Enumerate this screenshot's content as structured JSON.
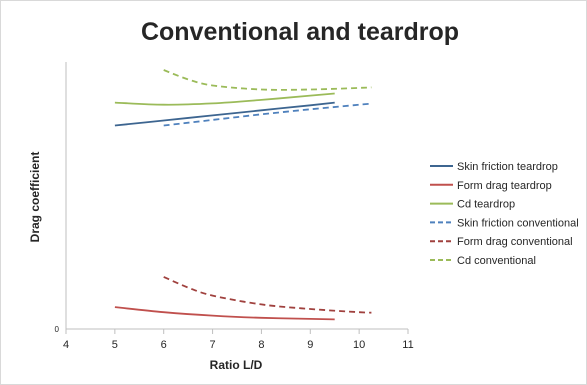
{
  "chart_data": {
    "type": "line",
    "title": "Conventional and teardrop",
    "xlabel": "Ratio L/D",
    "ylabel": "Drag coefficient",
    "xlim": [
      4,
      11
    ],
    "x_ticks": [
      "4",
      "5",
      "6",
      "7",
      "8",
      "9",
      "10",
      "11"
    ],
    "y_ticks": [
      "0"
    ],
    "grid": false,
    "legend_position": "right",
    "series": [
      {
        "name": "Skin friction teardrop",
        "color": "#3d6590",
        "dash": "solid",
        "points": [
          [
            5,
            0.762
          ],
          [
            6,
            0.781
          ],
          [
            7,
            0.8
          ],
          [
            8,
            0.819
          ],
          [
            9,
            0.838
          ],
          [
            9.5,
            0.848
          ]
        ]
      },
      {
        "name": "Form drag teardrop",
        "color": "#c0504d",
        "dash": "solid",
        "points": [
          [
            5,
            0.082
          ],
          [
            6,
            0.063
          ],
          [
            7,
            0.05
          ],
          [
            8,
            0.042
          ],
          [
            9,
            0.038
          ],
          [
            9.5,
            0.036
          ]
        ]
      },
      {
        "name": "Cd teardrop",
        "color": "#9bbb59",
        "dash": "solid",
        "points": [
          [
            5,
            0.848
          ],
          [
            6,
            0.84
          ],
          [
            7,
            0.845
          ],
          [
            8,
            0.858
          ],
          [
            9,
            0.874
          ],
          [
            9.5,
            0.882
          ]
        ]
      },
      {
        "name": "Skin friction conventional",
        "color": "#4f81bd",
        "dash": "dashed",
        "points": [
          [
            6,
            0.762
          ],
          [
            7,
            0.783
          ],
          [
            8,
            0.804
          ],
          [
            9,
            0.823
          ],
          [
            10,
            0.84
          ],
          [
            10.25,
            0.844
          ]
        ]
      },
      {
        "name": "Form drag conventional",
        "color": "#a0413e",
        "dash": "dashed",
        "points": [
          [
            6,
            0.195
          ],
          [
            6.5,
            0.155
          ],
          [
            7,
            0.125
          ],
          [
            8,
            0.092
          ],
          [
            9,
            0.075
          ],
          [
            10,
            0.063
          ],
          [
            10.25,
            0.061
          ]
        ]
      },
      {
        "name": "Cd conventional",
        "color": "#9bbb59",
        "dash": "dashed",
        "points": [
          [
            6,
            0.97
          ],
          [
            6.5,
            0.935
          ],
          [
            7,
            0.912
          ],
          [
            8,
            0.897
          ],
          [
            9,
            0.897
          ],
          [
            10,
            0.903
          ],
          [
            10.25,
            0.905
          ]
        ]
      }
    ]
  }
}
